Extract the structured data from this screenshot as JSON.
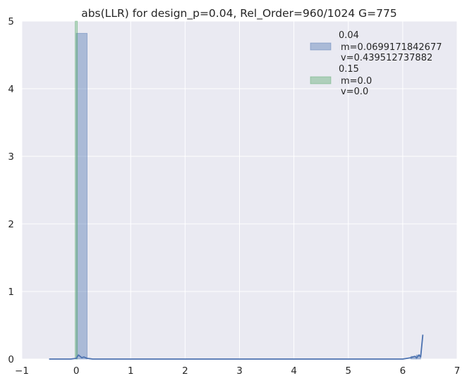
{
  "chart_data": {
    "type": "bar",
    "title": "abs(LLR) for design_p=0.04, Rel_Order=960/1024 G=775",
    "xlabel": "",
    "ylabel": "",
    "xlim": [
      -1,
      7
    ],
    "ylim": [
      0,
      5
    ],
    "xticks": [
      "−1",
      "0",
      "1",
      "2",
      "3",
      "4",
      "5",
      "6",
      "7"
    ],
    "yticks": [
      "0",
      "1",
      "2",
      "3",
      "4",
      "5"
    ],
    "grid": true,
    "legend_position": "top-right",
    "series": [
      {
        "name": "0.04",
        "stats": [
          "m=0.0699171842677",
          "v=0.439512737882"
        ],
        "color": "#4c72b0",
        "histogram": [
          {
            "x0": 0.0,
            "x1": 0.2,
            "height": 4.82
          },
          {
            "x0": 6.15,
            "x1": 6.25,
            "height": 0.04
          },
          {
            "x0": 6.25,
            "x1": 6.33,
            "height": 0.06
          }
        ],
        "kde_points": [
          [
            -0.5,
            0.0
          ],
          [
            -0.1,
            0.0
          ],
          [
            0.0,
            0.01
          ],
          [
            0.04,
            0.06
          ],
          [
            0.1,
            0.02
          ],
          [
            0.14,
            0.03
          ],
          [
            0.2,
            0.01
          ],
          [
            0.3,
            0.0
          ],
          [
            1.0,
            0.0
          ],
          [
            3.0,
            0.0
          ],
          [
            5.5,
            0.0
          ],
          [
            6.0,
            0.0
          ],
          [
            6.15,
            0.02
          ],
          [
            6.22,
            0.04
          ],
          [
            6.26,
            0.02
          ],
          [
            6.3,
            0.06
          ],
          [
            6.33,
            0.03
          ],
          [
            6.37,
            0.36
          ]
        ]
      },
      {
        "name": "0.15",
        "stats": [
          "m=0.0",
          "v=0.0"
        ],
        "color": "#55a868",
        "histogram": [
          {
            "x0": -0.02,
            "x1": 0.02,
            "height": 5.0
          }
        ]
      }
    ]
  }
}
